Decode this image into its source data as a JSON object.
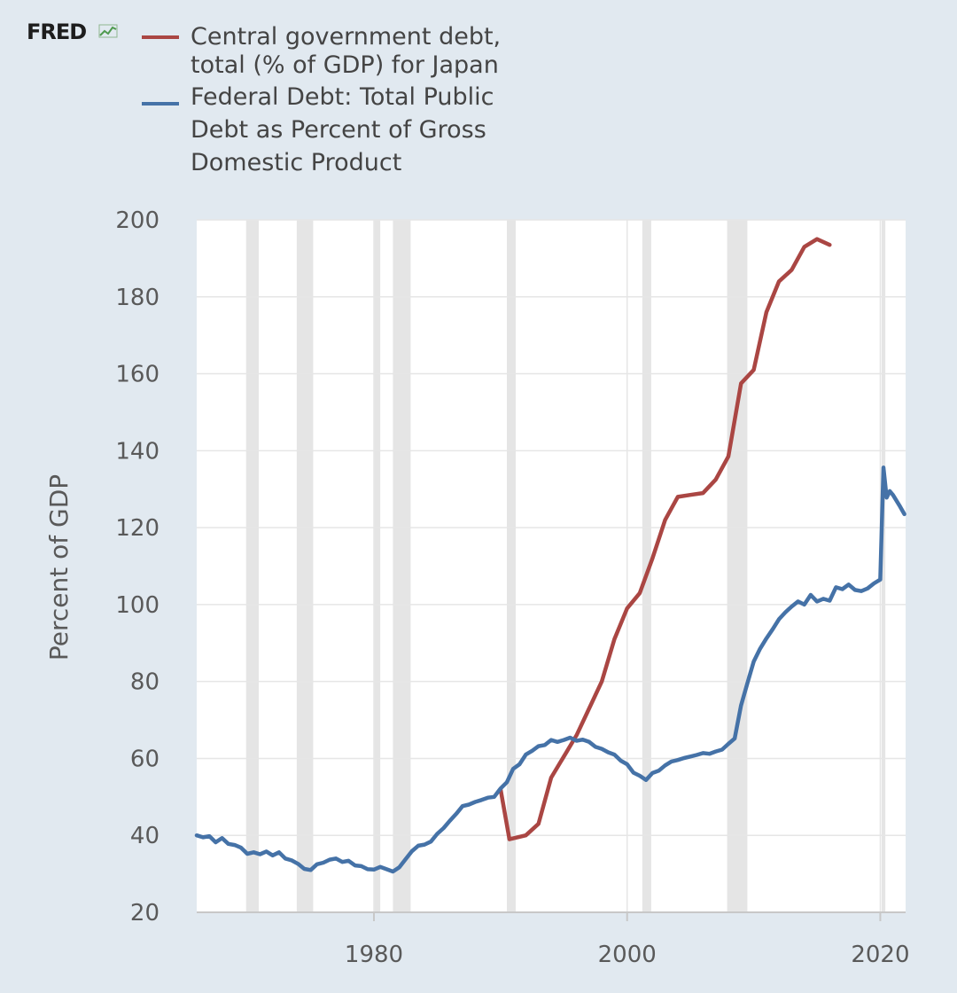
{
  "logo": {
    "text": "FRED",
    "icon": "chart-line-icon"
  },
  "chart_data": {
    "type": "line",
    "title": "",
    "xlabel": "",
    "ylabel": "Percent of GDP",
    "xlim": [
      1966,
      2022
    ],
    "ylim": [
      20,
      200
    ],
    "yticks": [
      20,
      40,
      60,
      80,
      100,
      120,
      140,
      160,
      180,
      200
    ],
    "xticks": [
      1980,
      2000,
      2020
    ],
    "grid": true,
    "legend_position": "top-left",
    "background": "#e1e9f0",
    "plot_background": "#ffffff",
    "recessions": [
      [
        1969.9,
        1970.9
      ],
      [
        1973.9,
        1975.2
      ],
      [
        1980.0,
        1980.5
      ],
      [
        1981.5,
        1982.9
      ],
      [
        1990.5,
        1991.2
      ],
      [
        2001.2,
        2001.9
      ],
      [
        2007.9,
        2009.5
      ],
      [
        2020.1,
        2020.4
      ]
    ],
    "series": [
      {
        "name": "Central government debt, total (% of GDP) for Japan",
        "color": "#aa4643",
        "points": [
          [
            1990,
            52
          ],
          [
            1990.7,
            39
          ],
          [
            1992,
            40
          ],
          [
            1993,
            43
          ],
          [
            1994,
            55
          ],
          [
            1995,
            60.5
          ],
          [
            1996,
            66
          ],
          [
            1997,
            73
          ],
          [
            1998,
            80
          ],
          [
            1999,
            91
          ],
          [
            2000,
            99
          ],
          [
            2001,
            103
          ],
          [
            2002,
            112
          ],
          [
            2003,
            122
          ],
          [
            2004,
            128
          ],
          [
            2005,
            128.5
          ],
          [
            2006,
            129
          ],
          [
            2007,
            132.5
          ],
          [
            2008,
            138.5
          ],
          [
            2009,
            157.5
          ],
          [
            2010,
            161
          ],
          [
            2011,
            176
          ],
          [
            2012,
            184
          ],
          [
            2013,
            187
          ],
          [
            2014,
            193
          ],
          [
            2015,
            195
          ],
          [
            2016,
            193.5
          ]
        ]
      },
      {
        "name": "Federal Debt: Total Public Debt as Percent of Gross Domestic Product",
        "color": "#4572a7",
        "points": [
          [
            1966,
            40
          ],
          [
            1966.5,
            39.5
          ],
          [
            1967,
            39.8
          ],
          [
            1967.5,
            38.2
          ],
          [
            1968,
            39.3
          ],
          [
            1968.5,
            37.8
          ],
          [
            1969,
            37.5
          ],
          [
            1969.5,
            36.8
          ],
          [
            1970,
            35.2
          ],
          [
            1970.5,
            35.6
          ],
          [
            1971,
            35.1
          ],
          [
            1971.5,
            35.8
          ],
          [
            1972,
            34.8
          ],
          [
            1972.5,
            35.6
          ],
          [
            1973,
            34
          ],
          [
            1973.5,
            33.5
          ],
          [
            1974,
            32.6
          ],
          [
            1974.5,
            31.3
          ],
          [
            1975,
            31
          ],
          [
            1975.5,
            32.5
          ],
          [
            1976,
            32.9
          ],
          [
            1976.5,
            33.7
          ],
          [
            1977,
            34
          ],
          [
            1977.5,
            33.1
          ],
          [
            1978,
            33.4
          ],
          [
            1978.5,
            32.2
          ],
          [
            1979,
            32
          ],
          [
            1979.5,
            31.2
          ],
          [
            1980,
            31.1
          ],
          [
            1980.5,
            31.8
          ],
          [
            1981,
            31.2
          ],
          [
            1981.5,
            30.6
          ],
          [
            1982,
            31.7
          ],
          [
            1982.5,
            33.8
          ],
          [
            1983,
            35.9
          ],
          [
            1983.5,
            37.3
          ],
          [
            1984,
            37.6
          ],
          [
            1984.5,
            38.4
          ],
          [
            1985,
            40.4
          ],
          [
            1985.5,
            41.9
          ],
          [
            1986,
            43.8
          ],
          [
            1986.5,
            45.6
          ],
          [
            1987,
            47.6
          ],
          [
            1987.5,
            48
          ],
          [
            1988,
            48.7
          ],
          [
            1988.5,
            49.2
          ],
          [
            1989,
            49.8
          ],
          [
            1989.5,
            50
          ],
          [
            1990,
            52.2
          ],
          [
            1990.5,
            53.8
          ],
          [
            1991,
            57.3
          ],
          [
            1991.5,
            58.5
          ],
          [
            1992,
            61
          ],
          [
            1992.5,
            62
          ],
          [
            1993,
            63.2
          ],
          [
            1993.5,
            63.5
          ],
          [
            1994,
            64.8
          ],
          [
            1994.5,
            64.3
          ],
          [
            1995,
            64.8
          ],
          [
            1995.5,
            65.4
          ],
          [
            1996,
            64.6
          ],
          [
            1996.5,
            64.9
          ],
          [
            1997,
            64.3
          ],
          [
            1997.5,
            63
          ],
          [
            1998,
            62.5
          ],
          [
            1998.5,
            61.6
          ],
          [
            1999,
            61
          ],
          [
            1999.5,
            59.4
          ],
          [
            2000,
            58.5
          ],
          [
            2000.5,
            56.3
          ],
          [
            2001,
            55.5
          ],
          [
            2001.5,
            54.4
          ],
          [
            2002,
            56.2
          ],
          [
            2002.5,
            56.8
          ],
          [
            2003,
            58.2
          ],
          [
            2003.5,
            59.2
          ],
          [
            2004,
            59.6
          ],
          [
            2004.5,
            60.1
          ],
          [
            2005,
            60.5
          ],
          [
            2005.5,
            60.9
          ],
          [
            2006,
            61.4
          ],
          [
            2006.5,
            61.2
          ],
          [
            2007,
            61.8
          ],
          [
            2007.5,
            62.3
          ],
          [
            2008,
            63.8
          ],
          [
            2008.5,
            65.2
          ],
          [
            2009,
            73.8
          ],
          [
            2009.5,
            79.5
          ],
          [
            2010,
            85.2
          ],
          [
            2010.5,
            88.5
          ],
          [
            2011,
            91.2
          ],
          [
            2011.5,
            93.6
          ],
          [
            2012,
            96.2
          ],
          [
            2012.5,
            98
          ],
          [
            2013,
            99.5
          ],
          [
            2013.5,
            100.8
          ],
          [
            2014,
            100
          ],
          [
            2014.5,
            102.5
          ],
          [
            2015,
            100.8
          ],
          [
            2015.5,
            101.5
          ],
          [
            2016,
            101
          ],
          [
            2016.5,
            104.5
          ],
          [
            2017,
            104
          ],
          [
            2017.5,
            105.2
          ],
          [
            2018,
            103.8
          ],
          [
            2018.5,
            103.5
          ],
          [
            2019,
            104.2
          ],
          [
            2019.5,
            105.5
          ],
          [
            2020,
            106.5
          ],
          [
            2020.25,
            135.6
          ],
          [
            2020.5,
            127.8
          ],
          [
            2020.75,
            129.5
          ],
          [
            2021,
            128.5
          ],
          [
            2021.5,
            125.8
          ],
          [
            2021.9,
            123.5
          ]
        ]
      }
    ]
  }
}
